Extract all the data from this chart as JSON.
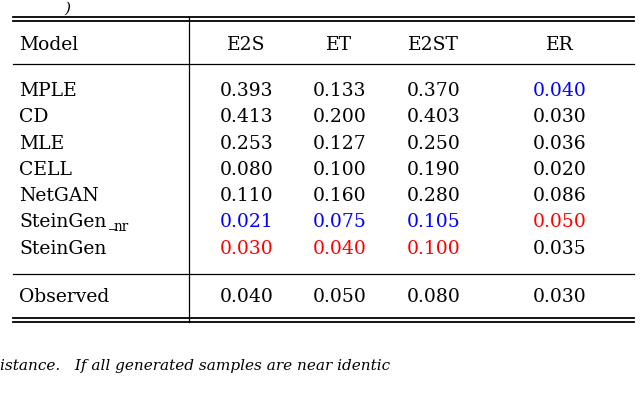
{
  "title": "",
  "columns": [
    "Model",
    "E2S",
    "ET",
    "E2ST",
    "ER"
  ],
  "rows": [
    [
      "MPLE",
      "0.393",
      "0.133",
      "0.370",
      "0.040"
    ],
    [
      "CD",
      "0.413",
      "0.200",
      "0.403",
      "0.030"
    ],
    [
      "MLE",
      "0.253",
      "0.127",
      "0.250",
      "0.036"
    ],
    [
      "CELL",
      "0.080",
      "0.100",
      "0.190",
      "0.020"
    ],
    [
      "NetGAN",
      "0.110",
      "0.160",
      "0.280",
      "0.086"
    ],
    [
      "SteinGen_nr",
      "0.021",
      "0.075",
      "0.105",
      "0.050"
    ],
    [
      "SteinGen",
      "0.030",
      "0.040",
      "0.100",
      "0.035"
    ],
    [
      "Observed",
      "0.040",
      "0.050",
      "0.080",
      "0.030"
    ]
  ],
  "cell_colors": {
    "0,4": "#0000ff",
    "5,1": "#0000ff",
    "5,2": "#0000ff",
    "5,3": "#0000ff",
    "5,4": "#ff0000",
    "6,1": "#ff0000",
    "6,2": "#ff0000",
    "6,3": "#ff0000"
  },
  "background_color": "#ffffff",
  "font_size": 13.5,
  "bottom_text": "istance.   If all generated samples are near identic"
}
